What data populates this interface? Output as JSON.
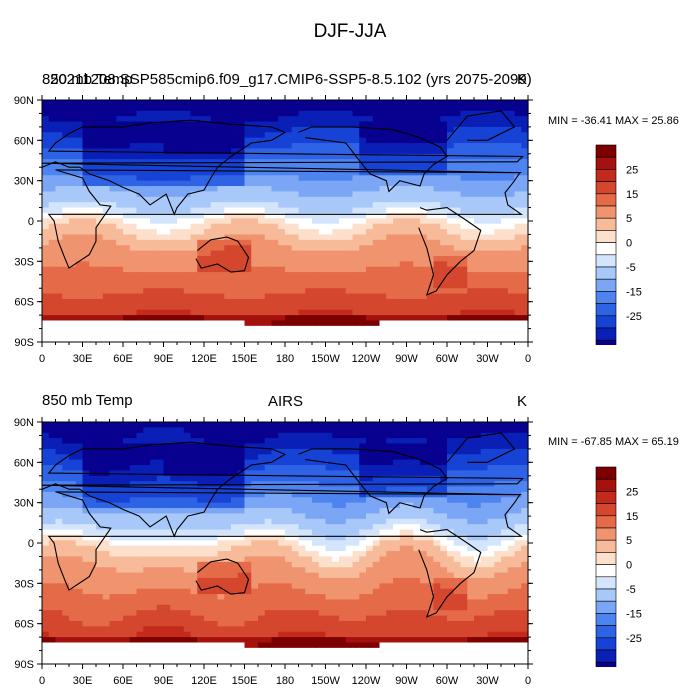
{
  "page_title": "DJF-JJA",
  "units": "K",
  "colorbar_labels": [
    "25",
    "15",
    "5",
    "0",
    "-5",
    "-15",
    "-25"
  ],
  "colors": {
    "levels": [
      "#08008f",
      "#0a1fb5",
      "#1742d6",
      "#2e63e6",
      "#4d84ef",
      "#7aa6f5",
      "#a9c8fa",
      "#d3e5fd",
      "#ffffff",
      "#fde0cc",
      "#f7bb9a",
      "#f0946f",
      "#e56a48",
      "#d4462e",
      "#c32a1b",
      "#a5120e",
      "#7d0000"
    ],
    "land_outline": "#000000",
    "missing": "#ffffff"
  },
  "chart_data": [
    {
      "type": "heatmap",
      "left_title": "850 mb Temp",
      "center_title": "20211208.SSP585cmip6.f09_g17.CMIP6-SSP5-8.5.102 (yrs 2075-2099)",
      "right_title": "K",
      "min_max_text": "MIN = -36.41 MAX =  25.86",
      "xlabels": [
        "0",
        "30E",
        "60E",
        "90E",
        "120E",
        "150E",
        "180",
        "150W",
        "120W",
        "90W",
        "60W",
        "30W",
        "0"
      ],
      "ylabels": [
        "90N",
        "60N",
        "30N",
        "0",
        "30S",
        "60S",
        "90S"
      ],
      "xlim": [
        0,
        360
      ],
      "ylim": [
        -90,
        90
      ],
      "contour_levels": [
        -35,
        -30,
        -25,
        -20,
        -15,
        -10,
        -5,
        -2,
        0,
        2,
        5,
        10,
        15,
        20,
        25,
        30
      ],
      "min": -36.41,
      "max": 25.86
    },
    {
      "type": "heatmap",
      "left_title": "850 mb Temp",
      "center_title": "AIRS",
      "right_title": "K",
      "min_max_text": "MIN = -67.85 MAX =  65.19",
      "xlabels": [
        "0",
        "30E",
        "60E",
        "90E",
        "120E",
        "150E",
        "180",
        "150W",
        "120W",
        "90W",
        "60W",
        "30W",
        "0"
      ],
      "ylabels": [
        "90N",
        "60N",
        "30N",
        "0",
        "30S",
        "60S",
        "90S"
      ],
      "xlim": [
        0,
        360
      ],
      "ylim": [
        -90,
        90
      ],
      "contour_levels": [
        -35,
        -30,
        -25,
        -20,
        -15,
        -10,
        -5,
        -2,
        0,
        2,
        5,
        10,
        15,
        20,
        25,
        30
      ],
      "min": -67.85,
      "max": 65.19
    }
  ]
}
